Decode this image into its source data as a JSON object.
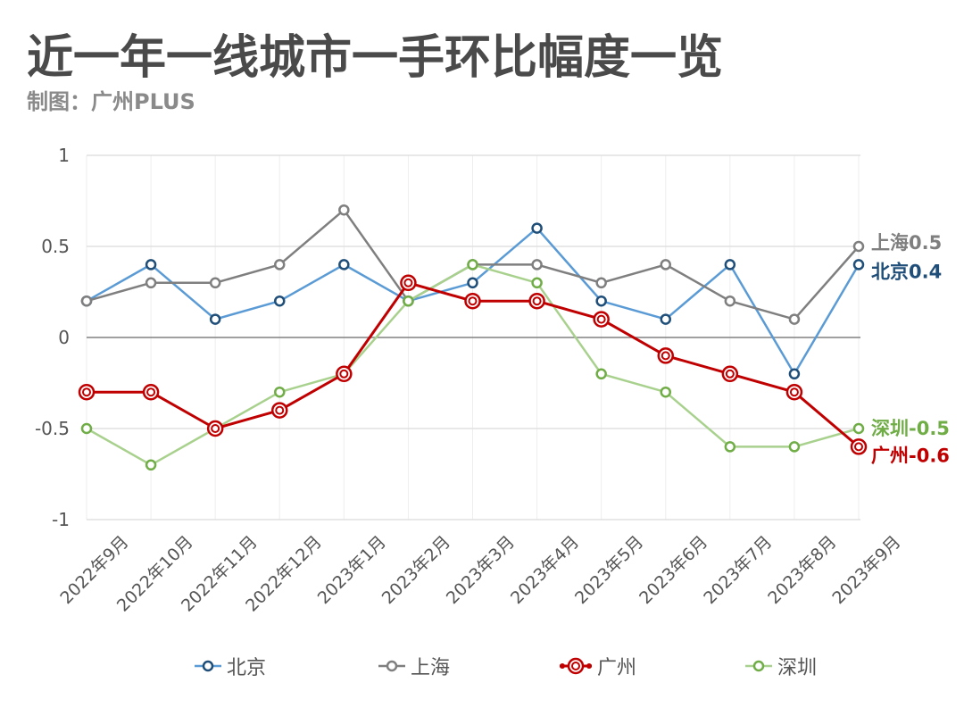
{
  "header": {
    "title": "近一年一线城市一手环比幅度一览",
    "subtitle": "制图：广州PLUS"
  },
  "colors": {
    "beijing_line": "#5b9bd5",
    "beijing_marker": "#1f4e79",
    "shanghai": "#7f7f7f",
    "guangzhou": "#c00000",
    "shenzhen": "#70ad47",
    "grid": "#e0e0e0",
    "zero_line": "#808080"
  },
  "chart_data": {
    "type": "line",
    "title": "近一年一线城市一手环比幅度一览",
    "xlabel": "",
    "ylabel": "",
    "ylim": [
      -1,
      1
    ],
    "yticks": [
      "1",
      "0.5",
      "0",
      "-0.5",
      "-1"
    ],
    "grid": true,
    "legend_position": "bottom",
    "categories": [
      "2022年9月",
      "2022年10月",
      "2022年11月",
      "2022年12月",
      "2023年1月",
      "2023年2月",
      "2023年3月",
      "2023年4月",
      "2023年5月",
      "2023年6月",
      "2023年7月",
      "2023年8月",
      "2023年9月"
    ],
    "series": [
      {
        "name": "北京",
        "values": [
          0.2,
          0.4,
          0.1,
          0.2,
          0.4,
          0.2,
          0.3,
          0.6,
          0.2,
          0.1,
          0.4,
          -0.2,
          0.4
        ],
        "end_label": "北京0.4"
      },
      {
        "name": "上海",
        "values": [
          0.2,
          0.3,
          0.3,
          0.4,
          0.7,
          0.2,
          0.4,
          0.4,
          0.3,
          0.4,
          0.2,
          0.1,
          0.5
        ],
        "end_label": "上海0.5"
      },
      {
        "name": "广州",
        "values": [
          -0.3,
          -0.3,
          -0.5,
          -0.4,
          -0.2,
          0.3,
          0.2,
          0.2,
          0.1,
          -0.1,
          -0.2,
          -0.3,
          -0.6
        ],
        "end_label": "广州-0.6"
      },
      {
        "name": "深圳",
        "values": [
          -0.5,
          -0.7,
          -0.5,
          -0.3,
          -0.2,
          0.2,
          0.4,
          0.3,
          -0.2,
          -0.3,
          -0.6,
          -0.6,
          -0.5
        ],
        "end_label": "深圳-0.5"
      }
    ]
  },
  "legend": {
    "items": [
      {
        "label": "北京"
      },
      {
        "label": "上海"
      },
      {
        "label": "广州"
      },
      {
        "label": "深圳"
      }
    ]
  }
}
